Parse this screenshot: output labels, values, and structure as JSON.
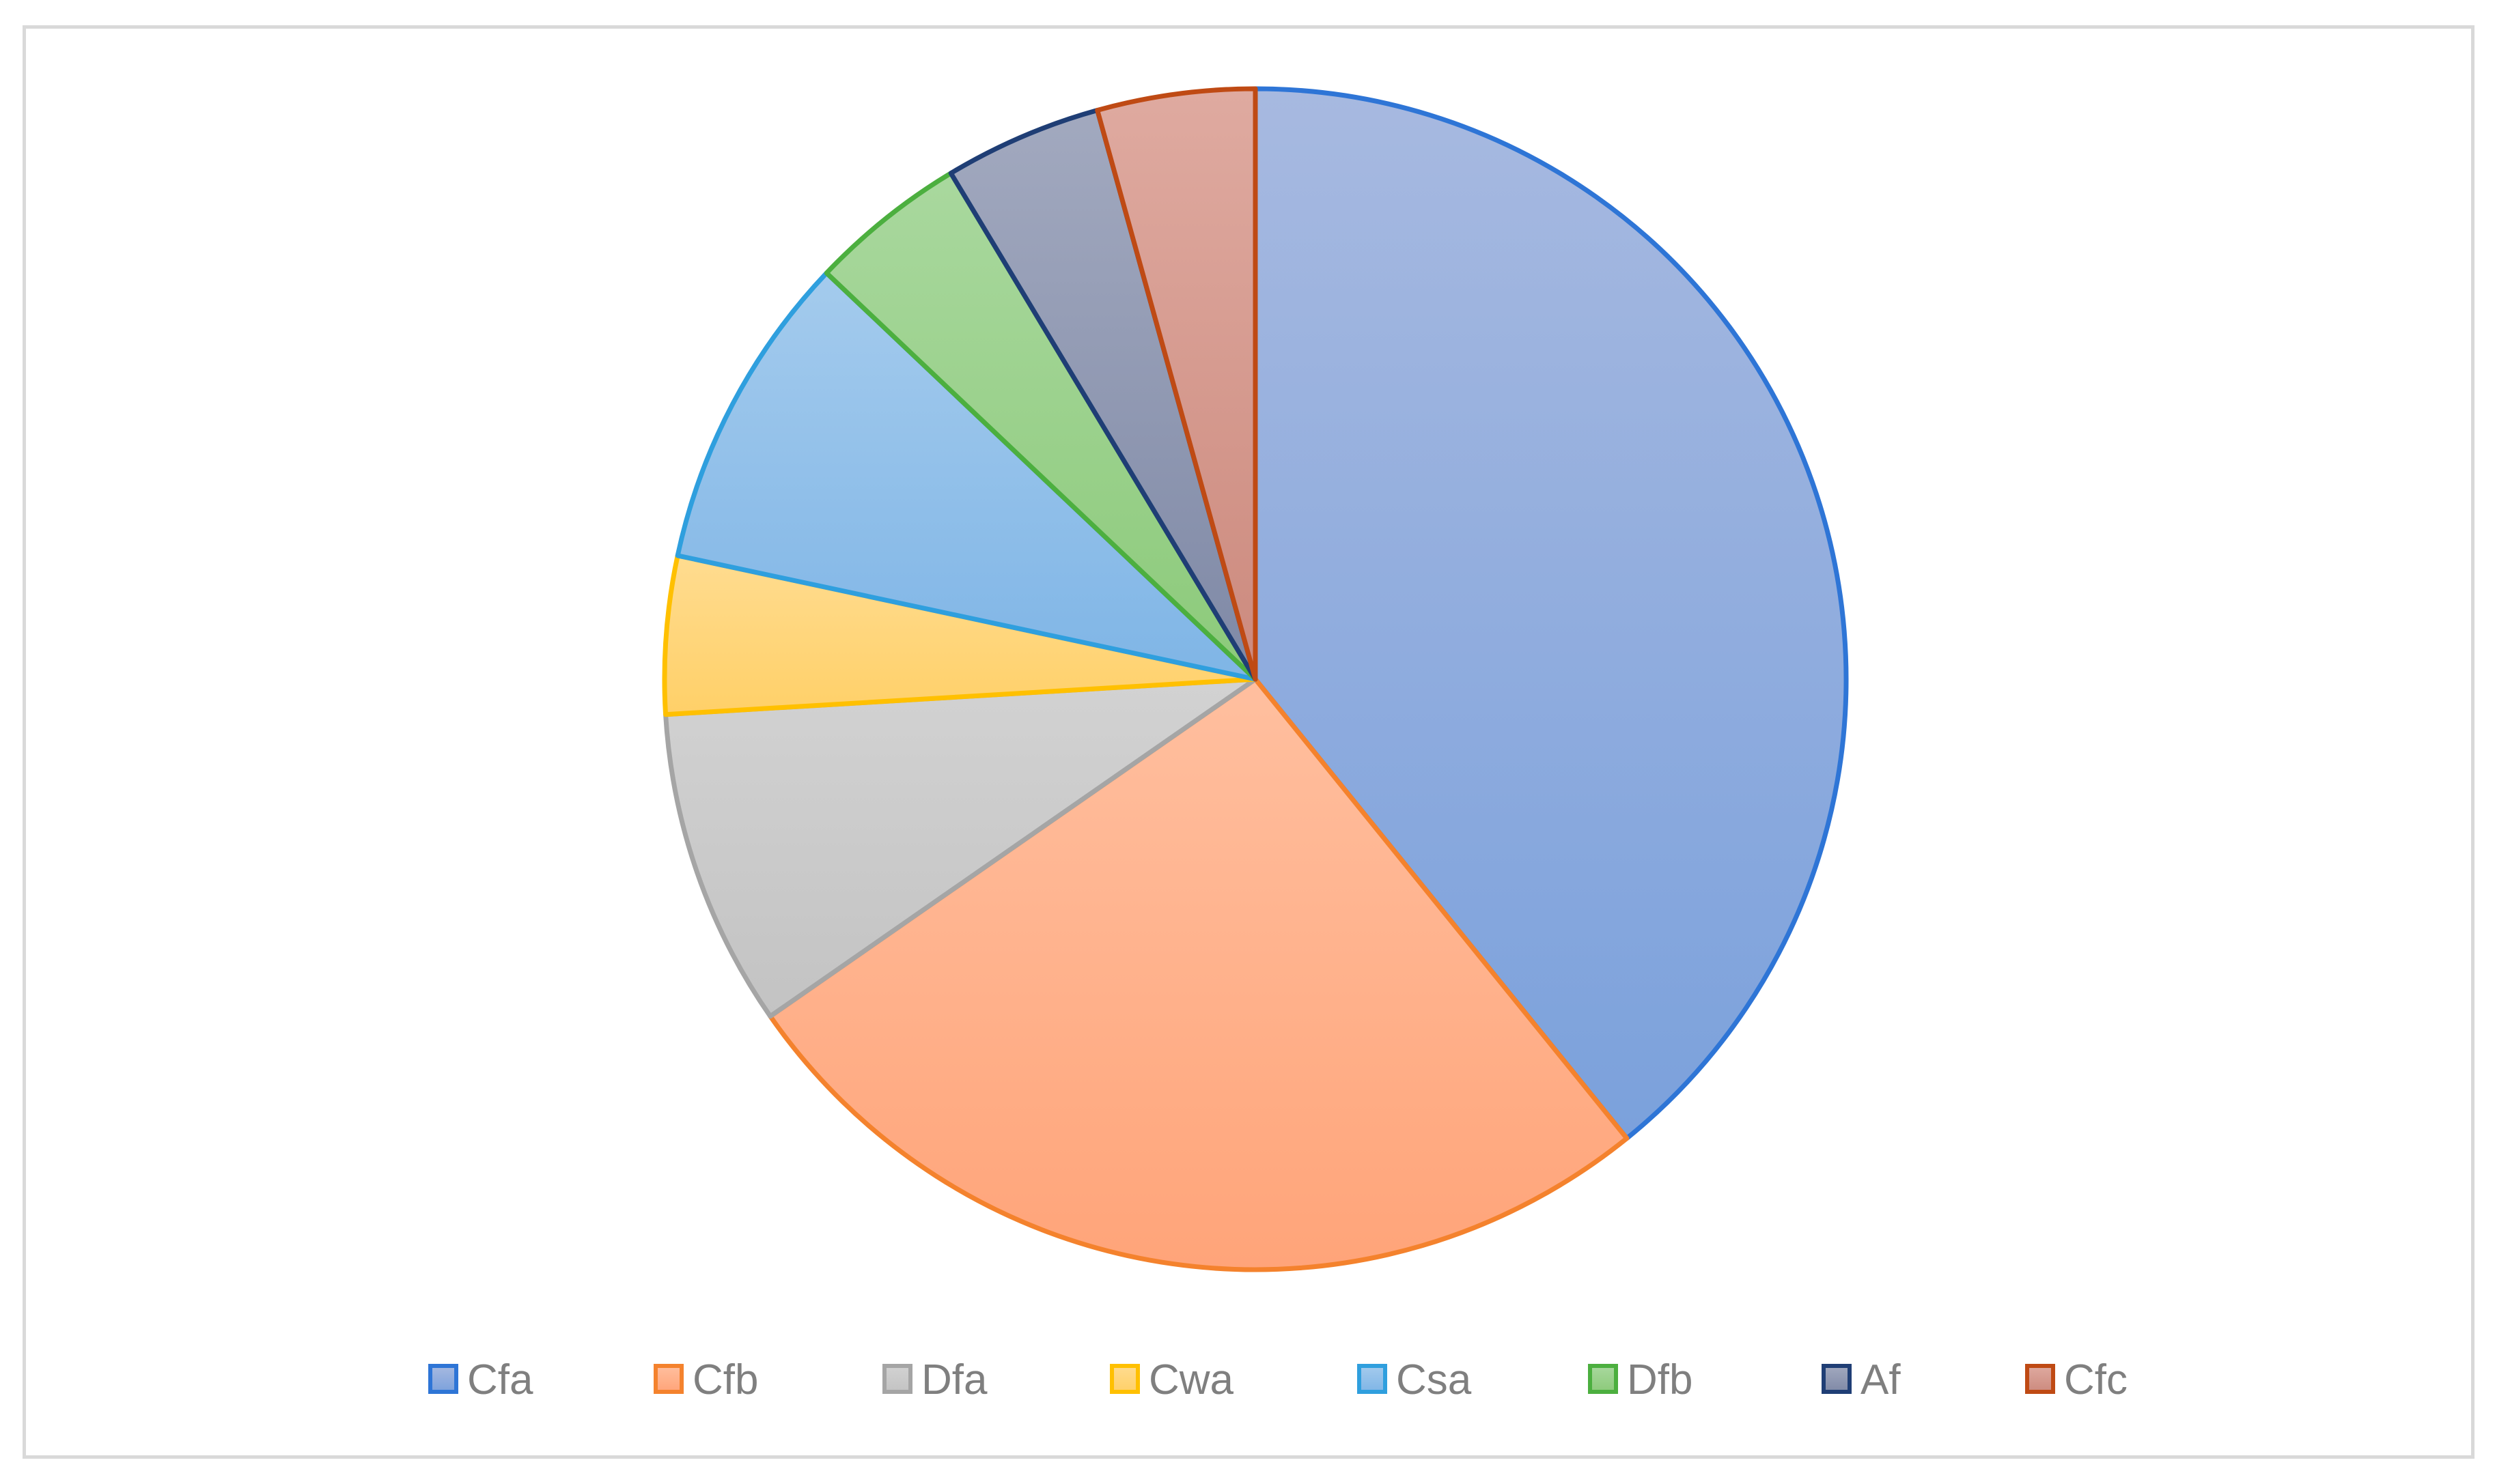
{
  "chart_data": {
    "type": "pie",
    "title": "",
    "categories": [
      "Cfa",
      "Cfb",
      "Dfa",
      "Cwa",
      "Csa",
      "Dfb",
      "Af",
      "Cfc"
    ],
    "values": [
      39.1,
      26.1,
      8.7,
      4.3,
      8.7,
      4.3,
      4.3,
      4.3
    ],
    "value_unit": "percent (estimated)",
    "start_angle": "12 o'clock",
    "direction": "clockwise",
    "legend": {
      "position": "bottom",
      "items": [
        "Cfa",
        "Cfb",
        "Dfa",
        "Cwa",
        "Csa",
        "Dfb",
        "Af",
        "Cfc"
      ]
    },
    "colors": {
      "fill_top": [
        "#a7b9e0",
        "#ffbf9f",
        "#d2d2d2",
        "#ffdc90",
        "#a4cbed",
        "#a9d89e",
        "#a2a9bf",
        "#dfaaa0"
      ],
      "fill_bottom": [
        "#7ba1dc",
        "#ffa479",
        "#c3c3c3",
        "#ffd068",
        "#7fb5e6",
        "#8cca7a",
        "#7f89a6",
        "#cc8a7e"
      ],
      "stroke": [
        "#2e75d6",
        "#f4822d",
        "#a5a5a5",
        "#ffc000",
        "#2f9fde",
        "#4caf3f",
        "#1f3e75",
        "#bf4a14"
      ]
    }
  }
}
